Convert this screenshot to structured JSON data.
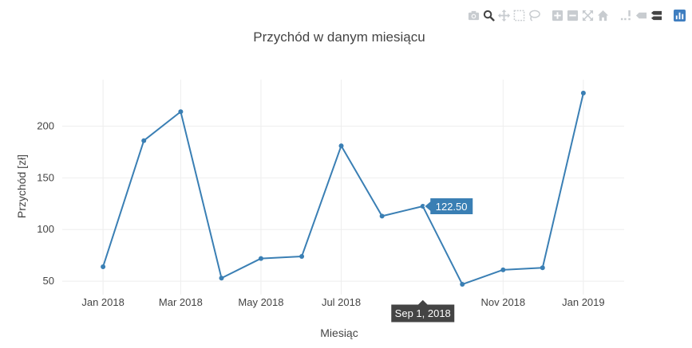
{
  "modebar": {
    "buttons": [
      {
        "name": "camera-icon",
        "group": 1
      },
      {
        "name": "zoom-icon",
        "group": 1,
        "active": true
      },
      {
        "name": "pan-icon",
        "group": 1
      },
      {
        "name": "box-select-icon",
        "group": 1
      },
      {
        "name": "lasso-select-icon",
        "group": 1
      },
      {
        "name": "zoom-in-icon",
        "group": 2
      },
      {
        "name": "zoom-out-icon",
        "group": 2
      },
      {
        "name": "autoscale-icon",
        "group": 2
      },
      {
        "name": "reset-axes-icon",
        "group": 2
      },
      {
        "name": "spike-lines-icon",
        "group": 3
      },
      {
        "name": "hover-closest-icon",
        "group": 3
      },
      {
        "name": "hover-compare-icon",
        "group": 3,
        "active": true
      },
      {
        "name": "plotly-logo-icon",
        "group": 4
      }
    ],
    "colors": {
      "inactive": "#c8ccd0",
      "active": "#444444",
      "logo": "#3f7ec0"
    }
  },
  "chart_data": {
    "type": "line",
    "title": "Przychód w danym miesiącu",
    "xlabel": "Miesiąc",
    "ylabel": "Przychód [zł]",
    "x": [
      "2018-01-01",
      "2018-02-01",
      "2018-03-01",
      "2018-04-01",
      "2018-05-01",
      "2018-06-01",
      "2018-07-01",
      "2018-08-01",
      "2018-09-01",
      "2018-10-01",
      "2018-11-01",
      "2018-12-01",
      "2019-01-01"
    ],
    "y": [
      64,
      186,
      214,
      53,
      72,
      74,
      181,
      113,
      122.5,
      47,
      61,
      63,
      232
    ],
    "xticks": [
      "Jan 2018",
      "Mar 2018",
      "May 2018",
      "Jul 2018",
      "Nov 2018",
      "Jan 2019"
    ],
    "xtick_dates": [
      "2018-01-01",
      "2018-03-01",
      "2018-05-01",
      "2018-07-01",
      "2018-11-01",
      "2019-01-01"
    ],
    "yticks": [
      50,
      100,
      150,
      200
    ],
    "xlim": [
      "2017-12-01",
      "2019-02-01"
    ],
    "ylim": [
      37,
      245
    ],
    "grid": true,
    "color": "#3a7fb4",
    "hover": {
      "date": "2018-09-01",
      "value_label": "122.50",
      "x_label": "Sep 1, 2018"
    }
  }
}
